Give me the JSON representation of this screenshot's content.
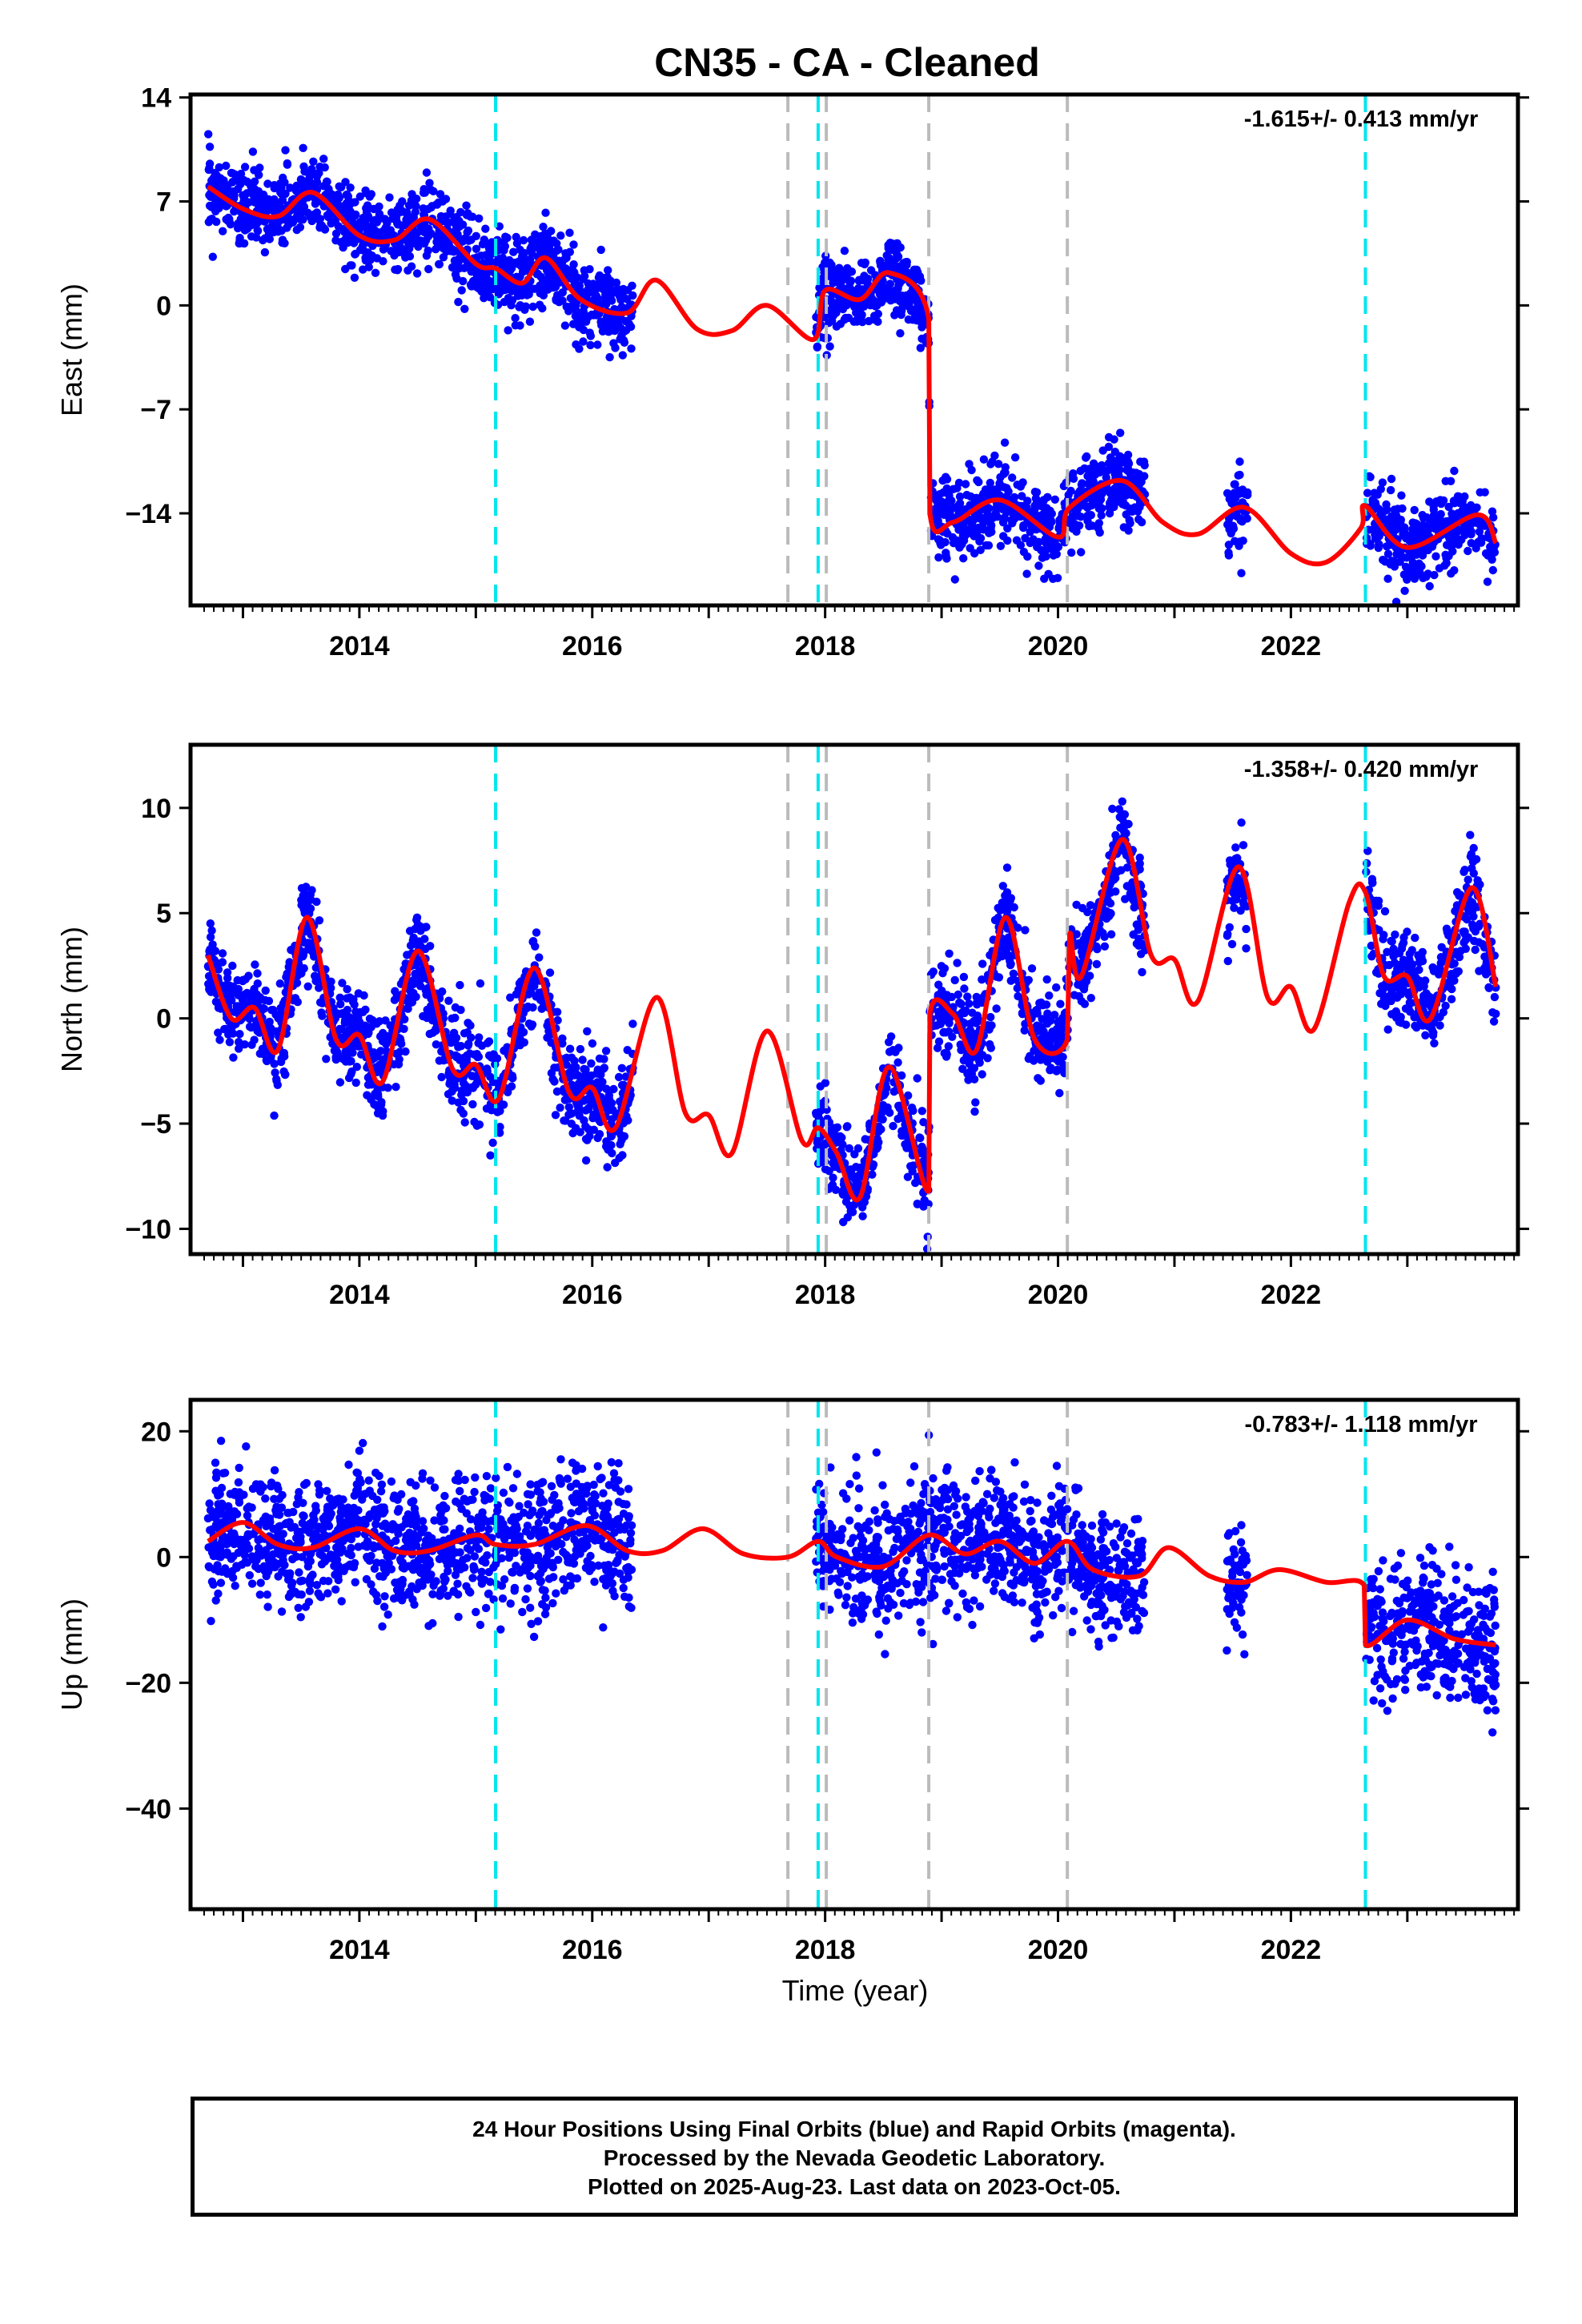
{
  "title": "CN35  - CA - Cleaned",
  "xlabel": "Time (year)",
  "footer": {
    "line1": "24 Hour Positions Using Final Orbits (blue) and Rapid Orbits (magenta).",
    "line2": "Processed by the Nevada Geodetic Laboratory.",
    "line3": "Plotted on 2025-Aug-23. Last data on 2023-Oct-05."
  },
  "colors": {
    "data_points": "#0000ff",
    "model_fit": "#ff0000",
    "equipment_change": "#00e5ee",
    "earthquake_event": "#bbbbbb"
  },
  "chart_data": [
    {
      "type": "scatter",
      "component": "East",
      "ylabel": "East (mm)",
      "rate": "-1.615+/- 0.413 mm/yr",
      "xlim": [
        2012.55,
        2023.95
      ],
      "ylim": [
        -20.2,
        14.2
      ],
      "yticks": [
        14,
        7,
        0,
        -7,
        -14
      ],
      "xticks": [
        2014,
        2016,
        2018,
        2020,
        2022
      ],
      "event_lines": {
        "cyan": [
          2015.17,
          2017.94,
          2022.64
        ],
        "gray": [
          2017.68,
          2018.01,
          2018.89,
          2020.08
        ]
      },
      "model_fit_approx": [
        [
          2012.7,
          8
        ],
        [
          2013.0,
          6.5
        ],
        [
          2013.3,
          6.0
        ],
        [
          2013.6,
          7.6
        ],
        [
          2014.0,
          4.7
        ],
        [
          2014.3,
          4.4
        ],
        [
          2014.6,
          5.8
        ],
        [
          2015.0,
          2.8
        ],
        [
          2015.17,
          2.5
        ],
        [
          2015.4,
          1.5
        ],
        [
          2015.6,
          3.2
        ],
        [
          2015.9,
          0.4
        ],
        [
          2016.3,
          -0.5
        ],
        [
          2016.55,
          1.7
        ],
        [
          2016.9,
          -1.6
        ],
        [
          2017.2,
          -1.7
        ],
        [
          2017.5,
          0
        ],
        [
          2017.9,
          -2.3
        ],
        [
          2018.0,
          1.0
        ],
        [
          2018.3,
          0.4
        ],
        [
          2018.55,
          2.2
        ],
        [
          2018.89,
          -0.9
        ],
        [
          2018.9,
          -14.0
        ],
        [
          2019.1,
          -14.6
        ],
        [
          2019.5,
          -13.1
        ],
        [
          2020.0,
          -15.6
        ],
        [
          2020.1,
          -13.6
        ],
        [
          2020.55,
          -11.8
        ],
        [
          2020.9,
          -14.6
        ],
        [
          2021.2,
          -15.4
        ],
        [
          2021.6,
          -13.6
        ],
        [
          2022.0,
          -16.7
        ],
        [
          2022.3,
          -17.3
        ],
        [
          2022.6,
          -15.0
        ],
        [
          2022.64,
          -13.5
        ],
        [
          2023.0,
          -16.3
        ],
        [
          2023.6,
          -14.1
        ],
        [
          2023.76,
          -16.0
        ]
      ]
    },
    {
      "type": "scatter",
      "component": "North",
      "ylabel": "North (mm)",
      "rate": "-1.358+/- 0.420 mm/yr",
      "xlim": [
        2012.55,
        2023.95
      ],
      "ylim": [
        -11.2,
        13.0
      ],
      "yticks": [
        10,
        5,
        0,
        -5,
        -10
      ],
      "xticks": [
        2014,
        2016,
        2018,
        2020,
        2022
      ],
      "event_lines": {
        "cyan": [
          2015.17,
          2017.94,
          2022.64
        ],
        "gray": [
          2017.68,
          2018.01,
          2018.89,
          2020.08
        ]
      },
      "model_fit_approx": [
        [
          2012.7,
          3.0
        ],
        [
          2012.9,
          0
        ],
        [
          2013.1,
          0.5
        ],
        [
          2013.3,
          -1.5
        ],
        [
          2013.55,
          4.8
        ],
        [
          2013.8,
          -1.0
        ],
        [
          2014.0,
          -0.8
        ],
        [
          2014.2,
          -3.0
        ],
        [
          2014.5,
          3.2
        ],
        [
          2014.8,
          -2.4
        ],
        [
          2015.0,
          -2.2
        ],
        [
          2015.2,
          -3.8
        ],
        [
          2015.5,
          2.4
        ],
        [
          2015.8,
          -3.5
        ],
        [
          2016.0,
          -3.3
        ],
        [
          2016.2,
          -5.2
        ],
        [
          2016.55,
          1.0
        ],
        [
          2016.8,
          -4.5
        ],
        [
          2017.0,
          -4.6
        ],
        [
          2017.2,
          -6.4
        ],
        [
          2017.5,
          -0.6
        ],
        [
          2017.8,
          -5.8
        ],
        [
          2017.94,
          -5.2
        ],
        [
          2018.1,
          -6.4
        ],
        [
          2018.3,
          -8.5
        ],
        [
          2018.55,
          -2.3
        ],
        [
          2018.89,
          -8.2
        ],
        [
          2018.9,
          0.2
        ],
        [
          2019.1,
          0.2
        ],
        [
          2019.3,
          -1.5
        ],
        [
          2019.55,
          4.8
        ],
        [
          2019.8,
          -1.0
        ],
        [
          2020.08,
          -1.0
        ],
        [
          2020.1,
          4.0
        ],
        [
          2020.2,
          2.0
        ],
        [
          2020.55,
          8.5
        ],
        [
          2020.8,
          3.0
        ],
        [
          2021.0,
          2.8
        ],
        [
          2021.2,
          0.8
        ],
        [
          2021.55,
          7.2
        ],
        [
          2021.8,
          1.0
        ],
        [
          2022.0,
          1.5
        ],
        [
          2022.2,
          -0.5
        ],
        [
          2022.5,
          5.5
        ],
        [
          2022.64,
          6.0
        ],
        [
          2022.8,
          2.0
        ],
        [
          2023.0,
          2.0
        ],
        [
          2023.2,
          0
        ],
        [
          2023.55,
          6.2
        ],
        [
          2023.76,
          1.5
        ]
      ]
    },
    {
      "type": "scatter",
      "component": "Up",
      "ylabel": "Up (mm)",
      "rate": "-0.783+/- 1.118 mm/yr",
      "xlim": [
        2012.55,
        2023.95
      ],
      "ylim": [
        -56,
        25
      ],
      "yticks": [
        20,
        0,
        -20,
        -40
      ],
      "xticks": [
        2014,
        2016,
        2018,
        2020,
        2022
      ],
      "event_lines": {
        "cyan": [
          2015.17,
          2017.94,
          2022.64
        ],
        "gray": [
          2017.68,
          2018.01,
          2018.89,
          2020.08
        ]
      },
      "model_fit_approx": [
        [
          2012.7,
          2.5
        ],
        [
          2013.0,
          5.5
        ],
        [
          2013.3,
          2.0
        ],
        [
          2013.6,
          1.5
        ],
        [
          2014.0,
          4.5
        ],
        [
          2014.3,
          1.0
        ],
        [
          2014.6,
          1.0
        ],
        [
          2015.0,
          3.5
        ],
        [
          2015.17,
          2.0
        ],
        [
          2015.5,
          2.0
        ],
        [
          2015.95,
          5.0
        ],
        [
          2016.3,
          1.0
        ],
        [
          2016.6,
          1.0
        ],
        [
          2016.95,
          4.5
        ],
        [
          2017.3,
          0.5
        ],
        [
          2017.68,
          0
        ],
        [
          2017.94,
          2.5
        ],
        [
          2018.1,
          0
        ],
        [
          2018.5,
          -1.5
        ],
        [
          2018.89,
          3.5
        ],
        [
          2019.2,
          0.5
        ],
        [
          2019.5,
          2.5
        ],
        [
          2019.8,
          -1.0
        ],
        [
          2020.08,
          2.5
        ],
        [
          2020.3,
          -2.0
        ],
        [
          2020.7,
          -3.0
        ],
        [
          2020.95,
          1.5
        ],
        [
          2021.3,
          -3.0
        ],
        [
          2021.6,
          -4.0
        ],
        [
          2021.9,
          -2.0
        ],
        [
          2022.3,
          -4.0
        ],
        [
          2022.63,
          -4.5
        ],
        [
          2022.64,
          -14.0
        ],
        [
          2023.0,
          -10.0
        ],
        [
          2023.4,
          -13.0
        ],
        [
          2023.76,
          -14.0
        ]
      ]
    }
  ]
}
